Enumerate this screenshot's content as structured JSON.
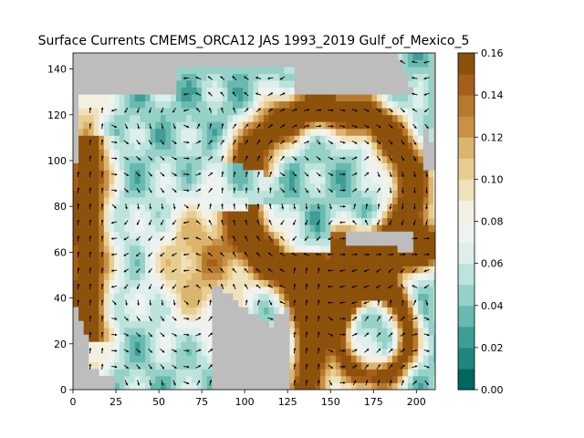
{
  "chart_data": {
    "type": "heatmap",
    "title": "Surface Currents CMEMS_ORCA12 JAS 1993_2019 Gulf_of_Mexico_5",
    "xlabel": "",
    "ylabel": "",
    "xlim": [
      0,
      211
    ],
    "ylim": [
      0,
      147
    ],
    "x_ticks": [
      "0",
      "25",
      "50",
      "75",
      "100",
      "125",
      "150",
      "175",
      "200"
    ],
    "y_ticks": [
      "0",
      "20",
      "40",
      "60",
      "80",
      "100",
      "120",
      "140"
    ],
    "grid": false,
    "land_color": "#bdbdbd",
    "overlay": "quiver arrows (current direction)",
    "colorbar": {
      "cmap": "BrBG_r (16 discrete levels)",
      "range": [
        0.0,
        0.16
      ],
      "tick_labels": [
        "0.00",
        "0.02",
        "0.04",
        "0.06",
        "0.08",
        "0.10",
        "0.12",
        "0.14",
        "0.16"
      ],
      "colors": [
        "#00665e",
        "#1f877f",
        "#3e9e95",
        "#68b9b0",
        "#96d1c8",
        "#bde3dd",
        "#dcefec",
        "#eef3f1",
        "#f4f0e1",
        "#f0e1bd",
        "#e7cd8f",
        "#dbb56d",
        "#c99147",
        "#b7792b",
        "#a46019",
        "#8c510a"
      ]
    }
  }
}
